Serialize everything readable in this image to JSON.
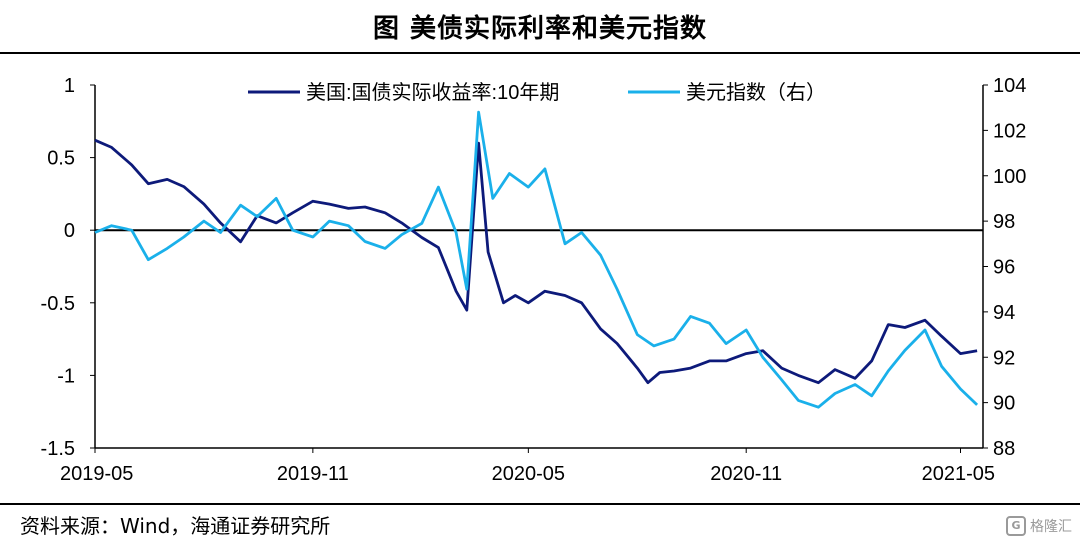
{
  "header": {
    "title": "图  美债实际利率和美元指数"
  },
  "footer": {
    "source": "资料来源：Wind，海通证券研究所",
    "watermark": "格隆汇"
  },
  "chart_data": {
    "type": "line",
    "title": "图  美债实际利率和美元指数",
    "xlabel": "",
    "ylabel": "",
    "x_ticks": [
      "2019-05",
      "2019-11",
      "2020-05",
      "2020-11",
      "2021-05"
    ],
    "y_left": {
      "lim": [
        -1.5,
        1
      ],
      "ticks": [
        "1",
        "0.5",
        "0",
        "-0.5",
        "-1",
        "-1.5"
      ]
    },
    "y_right": {
      "lim": [
        88,
        104
      ],
      "ticks": [
        "104",
        "102",
        "100",
        "98",
        "96",
        "94",
        "92",
        "90",
        "88"
      ]
    },
    "legend_position": "top-center",
    "series": [
      {
        "name": "美国:国债实际收益率:10年期",
        "axis": "left",
        "color": "#0d1a7a",
        "points": [
          [
            "2019-05-01",
            0.62
          ],
          [
            "2019-05-15",
            0.57
          ],
          [
            "2019-06-01",
            0.45
          ],
          [
            "2019-06-15",
            0.32
          ],
          [
            "2019-07-01",
            0.35
          ],
          [
            "2019-07-15",
            0.3
          ],
          [
            "2019-08-01",
            0.18
          ],
          [
            "2019-08-15",
            0.05
          ],
          [
            "2019-09-01",
            -0.08
          ],
          [
            "2019-09-15",
            0.1
          ],
          [
            "2019-10-01",
            0.05
          ],
          [
            "2019-10-15",
            0.12
          ],
          [
            "2019-11-01",
            0.2
          ],
          [
            "2019-11-15",
            0.18
          ],
          [
            "2019-12-01",
            0.15
          ],
          [
            "2019-12-15",
            0.16
          ],
          [
            "2020-01-01",
            0.12
          ],
          [
            "2020-01-15",
            0.05
          ],
          [
            "2020-02-01",
            -0.05
          ],
          [
            "2020-02-15",
            -0.12
          ],
          [
            "2020-03-01",
            -0.42
          ],
          [
            "2020-03-10",
            -0.55
          ],
          [
            "2020-03-20",
            0.6
          ],
          [
            "2020-03-28",
            -0.15
          ],
          [
            "2020-04-10",
            -0.5
          ],
          [
            "2020-04-20",
            -0.45
          ],
          [
            "2020-05-01",
            -0.5
          ],
          [
            "2020-05-15",
            -0.42
          ],
          [
            "2020-06-01",
            -0.45
          ],
          [
            "2020-06-15",
            -0.5
          ],
          [
            "2020-07-01",
            -0.68
          ],
          [
            "2020-07-15",
            -0.78
          ],
          [
            "2020-08-01",
            -0.95
          ],
          [
            "2020-08-10",
            -1.05
          ],
          [
            "2020-08-20",
            -0.98
          ],
          [
            "2020-09-01",
            -0.97
          ],
          [
            "2020-09-15",
            -0.95
          ],
          [
            "2020-10-01",
            -0.9
          ],
          [
            "2020-10-15",
            -0.9
          ],
          [
            "2020-11-01",
            -0.85
          ],
          [
            "2020-11-15",
            -0.83
          ],
          [
            "2020-12-01",
            -0.95
          ],
          [
            "2020-12-15",
            -1.0
          ],
          [
            "2021-01-01",
            -1.05
          ],
          [
            "2021-01-15",
            -0.96
          ],
          [
            "2021-02-01",
            -1.02
          ],
          [
            "2021-02-15",
            -0.9
          ],
          [
            "2021-03-01",
            -0.65
          ],
          [
            "2021-03-15",
            -0.67
          ],
          [
            "2021-04-01",
            -0.62
          ],
          [
            "2021-04-15",
            -0.73
          ],
          [
            "2021-05-01",
            -0.85
          ],
          [
            "2021-05-15",
            -0.83
          ]
        ]
      },
      {
        "name": "美元指数（右）",
        "axis": "right",
        "color": "#1ab0ea",
        "points": [
          [
            "2019-05-01",
            97.5
          ],
          [
            "2019-05-15",
            97.8
          ],
          [
            "2019-06-01",
            97.6
          ],
          [
            "2019-06-15",
            96.3
          ],
          [
            "2019-07-01",
            96.8
          ],
          [
            "2019-07-15",
            97.3
          ],
          [
            "2019-08-01",
            98.0
          ],
          [
            "2019-08-15",
            97.5
          ],
          [
            "2019-09-01",
            98.7
          ],
          [
            "2019-09-15",
            98.2
          ],
          [
            "2019-10-01",
            99.0
          ],
          [
            "2019-10-15",
            97.6
          ],
          [
            "2019-11-01",
            97.3
          ],
          [
            "2019-11-15",
            98.0
          ],
          [
            "2019-12-01",
            97.8
          ],
          [
            "2019-12-15",
            97.1
          ],
          [
            "2020-01-01",
            96.8
          ],
          [
            "2020-01-15",
            97.4
          ],
          [
            "2020-02-01",
            97.9
          ],
          [
            "2020-02-15",
            99.5
          ],
          [
            "2020-03-01",
            97.5
          ],
          [
            "2020-03-10",
            95.0
          ],
          [
            "2020-03-20",
            102.8
          ],
          [
            "2020-04-01",
            99.0
          ],
          [
            "2020-04-15",
            100.1
          ],
          [
            "2020-05-01",
            99.5
          ],
          [
            "2020-05-15",
            100.3
          ],
          [
            "2020-06-01",
            97.0
          ],
          [
            "2020-06-15",
            97.5
          ],
          [
            "2020-07-01",
            96.5
          ],
          [
            "2020-07-15",
            95.0
          ],
          [
            "2020-08-01",
            93.0
          ],
          [
            "2020-08-15",
            92.5
          ],
          [
            "2020-09-01",
            92.8
          ],
          [
            "2020-09-15",
            93.8
          ],
          [
            "2020-10-01",
            93.5
          ],
          [
            "2020-10-15",
            92.6
          ],
          [
            "2020-11-01",
            93.2
          ],
          [
            "2020-11-15",
            92.0
          ],
          [
            "2020-12-01",
            91.0
          ],
          [
            "2020-12-15",
            90.1
          ],
          [
            "2021-01-01",
            89.8
          ],
          [
            "2021-01-15",
            90.4
          ],
          [
            "2021-02-01",
            90.8
          ],
          [
            "2021-02-15",
            90.3
          ],
          [
            "2021-03-01",
            91.4
          ],
          [
            "2021-03-15",
            92.3
          ],
          [
            "2021-04-01",
            93.2
          ],
          [
            "2021-04-15",
            91.6
          ],
          [
            "2021-05-01",
            90.6
          ],
          [
            "2021-05-15",
            89.9
          ]
        ]
      }
    ]
  }
}
